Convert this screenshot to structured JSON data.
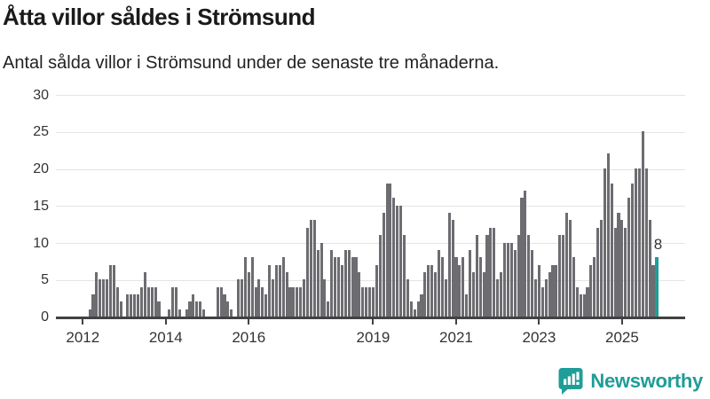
{
  "title": "Åtta villor såldes i Strömsund",
  "subtitle": "Antal sålda villor i Strömsund under de senaste tre månaderna.",
  "branding": {
    "logo_text": "Newsworthy",
    "logo_icon": "bar-chart-speech-bubble-icon",
    "logo_color": "#1f9d98"
  },
  "chart_data": {
    "type": "bar",
    "title": "Åtta villor såldes i Strömsund",
    "subtitle": "Antal sålda villor i Strömsund under de senaste tre månaderna.",
    "start_month": "2012-03",
    "frequency": "monthly",
    "ylim": [
      0,
      30
    ],
    "y_ticks": [
      0,
      5,
      10,
      15,
      20,
      25,
      30
    ],
    "x_ticks": [
      {
        "label": "2012",
        "month_index": 0
      },
      {
        "label": "2014",
        "month_index": 24
      },
      {
        "label": "2016",
        "month_index": 48
      },
      {
        "label": "2019",
        "month_index": 84
      },
      {
        "label": "2021",
        "month_index": 108
      },
      {
        "label": "2023",
        "month_index": 132
      },
      {
        "label": "2025",
        "month_index": 156
      }
    ],
    "grid": true,
    "legend": "none",
    "bar_color": "#6c6c71",
    "highlight_color": "#1f9d98",
    "highlight_last_bar": true,
    "highlight_label": "8",
    "values": [
      1,
      3,
      6,
      5,
      5,
      5,
      7,
      7,
      4,
      2,
      0,
      3,
      3,
      3,
      3,
      4,
      6,
      4,
      4,
      4,
      2,
      0,
      0,
      1,
      4,
      4,
      1,
      0,
      1,
      2,
      3,
      2,
      2,
      1,
      0,
      0,
      0,
      4,
      4,
      3,
      2,
      1,
      0,
      5,
      5,
      8,
      6,
      8,
      4,
      5,
      4,
      3,
      7,
      5,
      7,
      7,
      8,
      6,
      4,
      4,
      4,
      4,
      5,
      12,
      13,
      13,
      9,
      10,
      5,
      2,
      9,
      8,
      8,
      7,
      9,
      9,
      8,
      8,
      6,
      4,
      4,
      4,
      4,
      7,
      11,
      14,
      18,
      18,
      16,
      15,
      15,
      11,
      5,
      2,
      1,
      2,
      3,
      6,
      7,
      7,
      6,
      9,
      8,
      5,
      14,
      13,
      8,
      7,
      8,
      3,
      9,
      6,
      11,
      8,
      6,
      11,
      12,
      12,
      5,
      6,
      10,
      10,
      10,
      9,
      11,
      16,
      17,
      11,
      9,
      5,
      7,
      4,
      5,
      6,
      7,
      7,
      11,
      11,
      14,
      13,
      8,
      4,
      3,
      3,
      4,
      7,
      8,
      12,
      13,
      20,
      22,
      18,
      12,
      14,
      13,
      12,
      16,
      18,
      20,
      20,
      25,
      20,
      13,
      7,
      8
    ]
  }
}
